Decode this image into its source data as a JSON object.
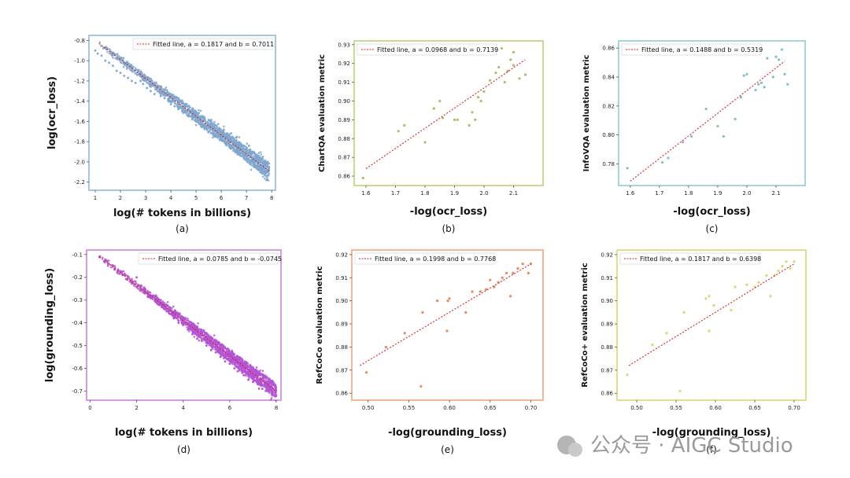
{
  "watermark": {
    "text": "公众号 · AIGC Studio"
  },
  "chart_data": [
    {
      "id": "a",
      "type": "scatter",
      "panel_label": "(a)",
      "xlabel": "log(# tokens in billions)",
      "ylabel": "log(ocr_loss)",
      "xlim": [
        0.75,
        8.15
      ],
      "ylim": [
        -2.28,
        -0.75
      ],
      "xticks": [
        1,
        2,
        3,
        4,
        5,
        6,
        7,
        8
      ],
      "xtick_labels": [
        "1",
        "2",
        "3",
        "4",
        "5",
        "6",
        "7",
        "8"
      ],
      "yticks": [
        -0.8,
        -1.0,
        -1.2,
        -1.4,
        -1.6,
        -1.8,
        -2.0,
        -2.2
      ],
      "ytick_labels": [
        "-0.8",
        "-1.0",
        "-1.2",
        "-1.4",
        "-1.6",
        "-1.8",
        "-2.0",
        "-2.2"
      ],
      "legend": "Fitted line,  a = 0.1817 and b = 0.7011",
      "legend_position": "top-right",
      "point_color": "#7ea7cf",
      "frame_color": "#a9c5e6",
      "fit": [
        [
          1.15,
          -0.83
        ],
        [
          7.9,
          -2.09
        ]
      ],
      "points": [
        [
          1.0,
          -0.9
        ],
        [
          1.1,
          -0.93
        ],
        [
          1.25,
          -0.95
        ],
        [
          1.4,
          -1.0
        ],
        [
          1.55,
          -1.02
        ],
        [
          1.7,
          -1.05
        ],
        [
          1.85,
          -1.1
        ],
        [
          2.0,
          -1.12
        ],
        [
          2.15,
          -1.15
        ],
        [
          2.3,
          -1.17
        ],
        [
          2.45,
          -1.2
        ],
        [
          2.6,
          -1.22
        ],
        [
          2.8,
          -1.2
        ],
        [
          2.9,
          -1.23
        ],
        [
          3.05,
          -1.27
        ],
        [
          3.2,
          -1.3
        ],
        [
          3.35,
          -1.33
        ],
        [
          3.45,
          -1.27
        ],
        [
          3.6,
          -1.35
        ],
        [
          3.75,
          -1.37
        ],
        [
          3.9,
          -1.4
        ],
        [
          4.0,
          -1.43
        ],
        [
          4.15,
          -1.45
        ],
        [
          4.3,
          -1.48
        ],
        [
          4.45,
          -1.5
        ],
        [
          4.55,
          -1.45
        ],
        [
          4.7,
          -1.55
        ],
        [
          4.85,
          -1.58
        ],
        [
          5.0,
          -1.6
        ],
        [
          5.1,
          -1.52
        ],
        [
          5.2,
          -1.65
        ],
        [
          5.35,
          -1.63
        ],
        [
          5.5,
          -1.7
        ],
        [
          5.6,
          -1.6
        ],
        [
          5.7,
          -1.74
        ],
        [
          5.85,
          -1.72
        ],
        [
          6.0,
          -1.78
        ],
        [
          6.1,
          -1.68
        ],
        [
          6.2,
          -1.82
        ],
        [
          6.35,
          -1.8
        ],
        [
          6.5,
          -1.86
        ],
        [
          6.6,
          -1.76
        ],
        [
          6.7,
          -1.9
        ],
        [
          6.85,
          -1.88
        ],
        [
          7.0,
          -1.94
        ],
        [
          7.1,
          -1.84
        ],
        [
          7.2,
          -1.98
        ],
        [
          7.3,
          -2.05
        ],
        [
          7.45,
          -2.0
        ],
        [
          7.55,
          -2.1
        ],
        [
          7.65,
          -1.95
        ],
        [
          7.75,
          -2.12
        ],
        [
          7.8,
          -2.18
        ],
        [
          7.9,
          -2.05
        ]
      ]
    },
    {
      "id": "b",
      "type": "scatter",
      "panel_label": "(b)",
      "xlabel": "-log(ocr_loss)",
      "ylabel": "ChartQA evaluation metric",
      "xlim": [
        1.56,
        2.2
      ],
      "ylim": [
        0.855,
        0.932
      ],
      "xticks": [
        1.6,
        1.7,
        1.8,
        1.9,
        2.0,
        2.1
      ],
      "xtick_labels": [
        "1.6",
        "1.7",
        "1.8",
        "1.9",
        "2.0",
        "2.1"
      ],
      "yticks": [
        0.86,
        0.87,
        0.88,
        0.89,
        0.9,
        0.91,
        0.92,
        0.93
      ],
      "ytick_labels": [
        "0.86",
        "0.87",
        "0.88",
        "0.89",
        "0.90",
        "0.91",
        "0.92",
        "0.93"
      ],
      "legend": "Fitted line,  a = 0.0968 and b = 0.7139",
      "legend_position": "top-left",
      "point_color": "#a9bf6a",
      "frame_color": "#c6dc94",
      "fit": [
        [
          1.6,
          0.864
        ],
        [
          2.14,
          0.922
        ]
      ],
      "points": [
        [
          1.59,
          0.859
        ],
        [
          1.71,
          0.884
        ],
        [
          1.73,
          0.887
        ],
        [
          1.8,
          0.878
        ],
        [
          1.83,
          0.896
        ],
        [
          1.85,
          0.9
        ],
        [
          1.86,
          0.891
        ],
        [
          1.9,
          0.89
        ],
        [
          1.91,
          0.89
        ],
        [
          1.95,
          0.887
        ],
        [
          1.96,
          0.894
        ],
        [
          1.97,
          0.89
        ],
        [
          1.98,
          0.902
        ],
        [
          1.99,
          0.9
        ],
        [
          2.0,
          0.905
        ],
        [
          2.02,
          0.911
        ],
        [
          2.04,
          0.915
        ],
        [
          2.05,
          0.918
        ],
        [
          2.06,
          0.928
        ],
        [
          2.07,
          0.91
        ],
        [
          2.08,
          0.916
        ],
        [
          2.09,
          0.922
        ],
        [
          2.1,
          0.919
        ],
        [
          2.1,
          0.926
        ],
        [
          2.12,
          0.912
        ],
        [
          2.14,
          0.914
        ]
      ]
    },
    {
      "id": "c",
      "type": "scatter",
      "panel_label": "(c)",
      "xlabel": "-log(ocr_loss)",
      "ylabel": "InfoVQA evaluation metric",
      "xlim": [
        1.56,
        2.2
      ],
      "ylim": [
        0.765,
        0.865
      ],
      "xticks": [
        1.6,
        1.7,
        1.8,
        1.9,
        2.0,
        2.1
      ],
      "xtick_labels": [
        "1.6",
        "1.7",
        "1.8",
        "1.9",
        "2.0",
        "2.1"
      ],
      "yticks": [
        0.78,
        0.8,
        0.82,
        0.84,
        0.86
      ],
      "ytick_labels": [
        "0.78",
        "0.80",
        "0.82",
        "0.84",
        "0.86"
      ],
      "legend": "Fitted line,  a = 0.1488 and b = 0.5319",
      "legend_position": "top-left",
      "point_color": "#7fc1c4",
      "frame_color": "#a4d8d8",
      "fit": [
        [
          1.6,
          0.768
        ],
        [
          2.13,
          0.851
        ]
      ],
      "points": [
        [
          1.59,
          0.777
        ],
        [
          1.71,
          0.781
        ],
        [
          1.73,
          0.784
        ],
        [
          1.78,
          0.795
        ],
        [
          1.81,
          0.799
        ],
        [
          1.86,
          0.818
        ],
        [
          1.9,
          0.806
        ],
        [
          1.92,
          0.799
        ],
        [
          1.96,
          0.811
        ],
        [
          1.98,
          0.826
        ],
        [
          1.99,
          0.841
        ],
        [
          2.0,
          0.842
        ],
        [
          2.03,
          0.831
        ],
        [
          2.04,
          0.835
        ],
        [
          2.05,
          0.836
        ],
        [
          2.06,
          0.833
        ],
        [
          2.07,
          0.853
        ],
        [
          2.09,
          0.84
        ],
        [
          2.1,
          0.854
        ],
        [
          2.11,
          0.852
        ],
        [
          2.12,
          0.859
        ],
        [
          2.13,
          0.842
        ],
        [
          2.14,
          0.835
        ]
      ]
    },
    {
      "id": "d",
      "type": "scatter",
      "panel_label": "(d)",
      "xlabel": "log(# tokens in billions)",
      "ylabel": "log(grounding_loss)",
      "xlim": [
        -0.15,
        8.2
      ],
      "ylim": [
        -0.74,
        -0.08
      ],
      "xticks": [
        0,
        2,
        4,
        6,
        8
      ],
      "xtick_labels": [
        "0",
        "2",
        "4",
        "6",
        "8"
      ],
      "yticks": [
        -0.1,
        -0.2,
        -0.3,
        -0.4,
        -0.5,
        -0.6,
        -0.7
      ],
      "ytick_labels": [
        "-0.1",
        "-0.2",
        "-0.3",
        "-0.4",
        "-0.5",
        "-0.6",
        "-0.7"
      ],
      "legend": "Fitted line,  a = 0.0785 and b = -0.0745",
      "legend_position": "top-right",
      "point_color": "#b452d6",
      "frame_color": "#d79be6",
      "fit": [
        [
          0.4,
          -0.11
        ],
        [
          8.0,
          -0.7
        ]
      ],
      "points": [
        [
          0.4,
          -0.11
        ],
        [
          0.6,
          -0.13
        ],
        [
          0.8,
          -0.14
        ],
        [
          1.0,
          -0.15
        ],
        [
          1.2,
          -0.17
        ],
        [
          1.4,
          -0.19
        ],
        [
          1.6,
          -0.21
        ],
        [
          1.8,
          -0.22
        ],
        [
          2.0,
          -0.2
        ],
        [
          2.2,
          -0.25
        ],
        [
          2.4,
          -0.27
        ],
        [
          2.6,
          -0.29
        ],
        [
          2.8,
          -0.3
        ],
        [
          3.0,
          -0.32
        ],
        [
          3.2,
          -0.34
        ],
        [
          3.4,
          -0.36
        ],
        [
          3.6,
          -0.38
        ],
        [
          3.8,
          -0.4
        ],
        [
          4.0,
          -0.41
        ],
        [
          4.2,
          -0.43
        ],
        [
          4.4,
          -0.45
        ],
        [
          4.6,
          -0.47
        ],
        [
          4.8,
          -0.48
        ],
        [
          5.0,
          -0.5
        ],
        [
          5.2,
          -0.52
        ],
        [
          5.4,
          -0.53
        ],
        [
          5.6,
          -0.55
        ],
        [
          5.8,
          -0.57
        ],
        [
          6.0,
          -0.58
        ],
        [
          6.2,
          -0.6
        ],
        [
          6.4,
          -0.61
        ],
        [
          6.6,
          -0.63
        ],
        [
          6.8,
          -0.65
        ],
        [
          7.0,
          -0.66
        ],
        [
          7.2,
          -0.67
        ],
        [
          7.4,
          -0.69
        ],
        [
          7.6,
          -0.7
        ],
        [
          7.8,
          -0.71
        ],
        [
          8.0,
          -0.72
        ]
      ]
    },
    {
      "id": "e",
      "type": "scatter",
      "panel_label": "(e)",
      "xlabel": "-log(grounding_loss)",
      "ylabel": "RefCoCo evaluation metric",
      "xlim": [
        0.48,
        0.715
      ],
      "ylim": [
        0.857,
        0.922
      ],
      "xticks": [
        0.5,
        0.55,
        0.6,
        0.65,
        0.7
      ],
      "xtick_labels": [
        "0.50",
        "0.55",
        "0.60",
        "0.65",
        "0.70"
      ],
      "yticks": [
        0.86,
        0.87,
        0.88,
        0.89,
        0.9,
        0.91,
        0.92
      ],
      "ytick_labels": [
        "0.86",
        "0.87",
        "0.88",
        "0.89",
        "0.90",
        "0.91",
        "0.92"
      ],
      "legend": "Fitted line,  a = 0.1998 and b = 0.7768",
      "legend_position": "top-left",
      "point_color": "#ea8a5c",
      "frame_color": "#f2b898",
      "fit": [
        [
          0.49,
          0.872
        ],
        [
          0.7,
          0.916
        ]
      ],
      "points": [
        [
          0.498,
          0.869
        ],
        [
          0.522,
          0.88
        ],
        [
          0.545,
          0.886
        ],
        [
          0.565,
          0.863
        ],
        [
          0.567,
          0.895
        ],
        [
          0.585,
          0.9
        ],
        [
          0.597,
          0.887
        ],
        [
          0.598,
          0.9
        ],
        [
          0.6,
          0.901
        ],
        [
          0.62,
          0.895
        ],
        [
          0.628,
          0.904
        ],
        [
          0.638,
          0.904
        ],
        [
          0.645,
          0.905
        ],
        [
          0.65,
          0.909
        ],
        [
          0.655,
          0.906
        ],
        [
          0.66,
          0.908
        ],
        [
          0.665,
          0.91
        ],
        [
          0.67,
          0.912
        ],
        [
          0.675,
          0.902
        ],
        [
          0.678,
          0.912
        ],
        [
          0.684,
          0.914
        ],
        [
          0.69,
          0.916
        ],
        [
          0.697,
          0.912
        ],
        [
          0.7,
          0.916
        ]
      ]
    },
    {
      "id": "f",
      "type": "scatter",
      "panel_label": "(f)",
      "xlabel": "-log(grounding_loss)",
      "ylabel": "RefCoCo+ evaluation metric",
      "xlim": [
        0.475,
        0.715
      ],
      "ylim": [
        0.857,
        0.922
      ],
      "xticks": [
        0.5,
        0.55,
        0.6,
        0.65,
        0.7
      ],
      "xtick_labels": [
        "0.50",
        "0.55",
        "0.60",
        "0.65",
        "0.70"
      ],
      "yticks": [
        0.86,
        0.87,
        0.88,
        0.89,
        0.9,
        0.91,
        0.92
      ],
      "ytick_labels": [
        "0.86",
        "0.87",
        "0.88",
        "0.89",
        "0.90",
        "0.91",
        "0.92"
      ],
      "legend": "Fitted line,  a = 0.1817 and b = 0.6398",
      "legend_position": "top-left",
      "point_color": "#d8d872",
      "frame_color": "#e0e08c",
      "fit": [
        [
          0.49,
          0.872
        ],
        [
          0.7,
          0.916
        ]
      ],
      "points": [
        [
          0.488,
          0.868
        ],
        [
          0.52,
          0.881
        ],
        [
          0.538,
          0.886
        ],
        [
          0.555,
          0.861
        ],
        [
          0.56,
          0.895
        ],
        [
          0.588,
          0.901
        ],
        [
          0.592,
          0.902
        ],
        [
          0.592,
          0.887
        ],
        [
          0.598,
          0.898
        ],
        [
          0.62,
          0.896
        ],
        [
          0.625,
          0.906
        ],
        [
          0.64,
          0.907
        ],
        [
          0.65,
          0.906
        ],
        [
          0.655,
          0.908
        ],
        [
          0.665,
          0.911
        ],
        [
          0.67,
          0.902
        ],
        [
          0.675,
          0.911
        ],
        [
          0.68,
          0.913
        ],
        [
          0.685,
          0.915
        ],
        [
          0.69,
          0.917
        ],
        [
          0.695,
          0.914
        ],
        [
          0.7,
          0.917
        ]
      ]
    }
  ]
}
